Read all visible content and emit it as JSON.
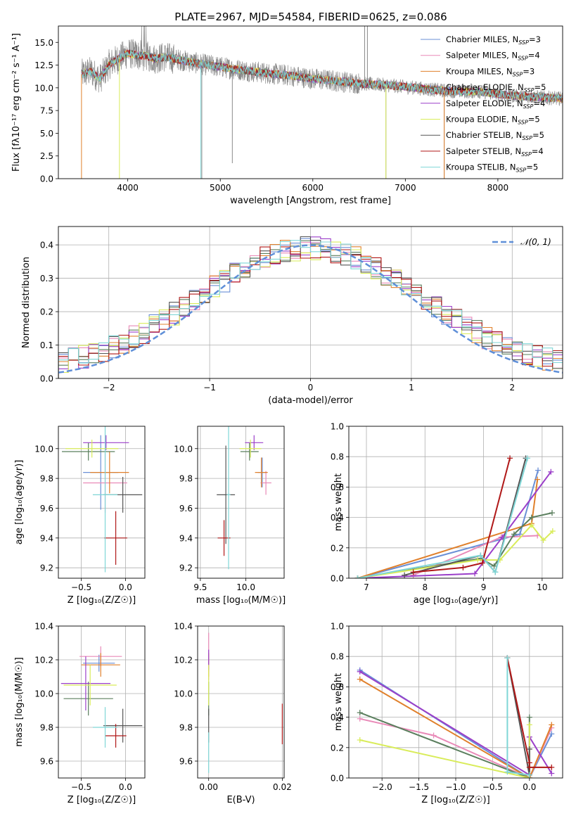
{
  "figure_title": "PLATE=2967, MJD=54584, FIBERID=0625, z=0.086",
  "colors": {
    "Chabrier MILES": "#6a8fd6",
    "Salpeter MILES": "#e98ab8",
    "Kroupa MILES": "#e0802c",
    "Chabrier ELODIE": "#5b7f5e",
    "Salpeter ELODIE": "#9b3fc9",
    "Kroupa ELODIE": "#d9ec5a",
    "Chabrier STELIB": "#555555",
    "Salpeter STELIB": "#b01818",
    "Kroupa STELIB": "#7fd6d6",
    "normal": "#5f8fd8"
  },
  "chart_data": [
    {
      "id": "spectrum",
      "type": "line",
      "title": "PLATE=2967, MJD=54584, FIBERID=0625, z=0.086",
      "xlabel": "wavelength [Angstrom, rest frame]",
      "ylabel": "Flux [fλ10⁻¹⁷ erg cm⁻² s⁻¹ A⁻¹]",
      "xlim": [
        3250,
        8700
      ],
      "ylim": [
        0,
        16.8
      ],
      "xticks": [
        4000,
        5000,
        6000,
        7000,
        8000
      ],
      "yticks": [
        0.0,
        2.5,
        5.0,
        7.5,
        10.0,
        12.5,
        15.0
      ],
      "legend_position": "top-right",
      "legend": [
        {
          "label": "Chabrier MILES, N",
          "sub": "SSP",
          "tail": "=3"
        },
        {
          "label": "Salpeter MILES, N",
          "sub": "SSP",
          "tail": "=4"
        },
        {
          "label": "Kroupa MILES, N",
          "sub": "SSP",
          "tail": "=3"
        },
        {
          "label": "Chabrier ELODIE, N",
          "sub": "SSP",
          "tail": "=5"
        },
        {
          "label": "Salpeter ELODIE, N",
          "sub": "SSP",
          "tail": "=4"
        },
        {
          "label": "Kroupa ELODIE, N",
          "sub": "SSP",
          "tail": "=5"
        },
        {
          "label": "Chabrier STELIB, N",
          "sub": "SSP",
          "tail": "=5"
        },
        {
          "label": "Salpeter STELIB, N",
          "sub": "SSP",
          "tail": "=4"
        },
        {
          "label": "Kroupa STELIB, N",
          "sub": "SSP",
          "tail": "=5"
        }
      ],
      "continuum": {
        "wavelength": [
          3500,
          3600,
          3700,
          3800,
          3900,
          4000,
          4100,
          4200,
          4300,
          4400,
          4600,
          4800,
          5000,
          5200,
          5500,
          5800,
          6000,
          6200,
          6400,
          6600,
          6800,
          7000,
          7200,
          7400,
          7600,
          7800,
          8000,
          8200,
          8400,
          8700
        ],
        "flux": [
          11.5,
          11.8,
          11.0,
          12.6,
          13.2,
          13.8,
          13.6,
          13.5,
          13.2,
          13.4,
          13.0,
          12.6,
          12.3,
          12.0,
          11.6,
          11.3,
          11.0,
          10.8,
          10.6,
          10.4,
          10.3,
          10.1,
          9.9,
          9.7,
          9.6,
          9.6,
          9.3,
          9.1,
          9.0,
          8.8
        ]
      }
    },
    {
      "id": "residuals",
      "type": "step-histogram",
      "xlabel": "(data-model)/error",
      "ylabel": "Normed distribution",
      "xlim": [
        -2.5,
        2.5
      ],
      "ylim": [
        0,
        0.455
      ],
      "xticks": [
        -2,
        -1,
        0,
        1,
        2
      ],
      "yticks": [
        0.0,
        0.1,
        0.2,
        0.3,
        0.4
      ],
      "legend_position": "top-right",
      "legend": [
        {
          "label": "𝒩(0, 1)"
        }
      ],
      "bin_width": 0.1,
      "bin_start": -2.5
    },
    {
      "id": "age-vs-Z",
      "type": "errorbar",
      "xlabel": "Z [log₁₀(Z/Z☉)]",
      "ylabel": "age  [log₁₀(age/yr)]",
      "xlim": [
        -0.76,
        0.22
      ],
      "ylim": [
        9.13,
        10.15
      ],
      "xticks": [
        -0.5,
        0.0
      ],
      "yticks": [
        9.2,
        9.4,
        9.6,
        9.8,
        10.0
      ],
      "points": [
        {
          "model": "Chabrier MILES",
          "x": -0.28,
          "y": 9.84,
          "xerr": 0.2,
          "yerr": 0.25
        },
        {
          "model": "Salpeter MILES",
          "x": -0.23,
          "y": 9.77,
          "xerr": 0.25,
          "yerr": 0.2
        },
        {
          "model": "Kroupa MILES",
          "x": -0.18,
          "y": 9.84,
          "xerr": 0.22,
          "yerr": 0.14
        },
        {
          "model": "Chabrier ELODIE",
          "x": -0.42,
          "y": 9.98,
          "xerr": 0.3,
          "yerr": 0.06
        },
        {
          "model": "Salpeter ELODIE",
          "x": -0.22,
          "y": 10.04,
          "xerr": 0.26,
          "yerr": 0.05
        },
        {
          "model": "Kroupa ELODIE",
          "x": -0.38,
          "y": 10.0,
          "xerr": 0.3,
          "yerr": 0.06
        },
        {
          "model": "Chabrier STELIB",
          "x": -0.03,
          "y": 9.69,
          "xerr": 0.22,
          "yerr": 0.12
        },
        {
          "model": "Salpeter STELIB",
          "x": -0.11,
          "y": 9.4,
          "xerr": 0.13,
          "yerr": 0.18
        },
        {
          "model": "Kroupa STELIB",
          "x": -0.23,
          "y": 9.69,
          "xerr": 0.14,
          "yerr": 0.52
        }
      ]
    },
    {
      "id": "age-vs-mass",
      "type": "errorbar",
      "xlabel": "mass [log₁₀(M/M☉)]",
      "ylabel": "",
      "xlim": [
        9.47,
        10.42
      ],
      "ylim": [
        9.13,
        10.15
      ],
      "xticks": [
        9.5,
        10.0
      ],
      "yticks": [
        9.2,
        9.4,
        9.6,
        9.8,
        10.0
      ],
      "points": [
        {
          "model": "Chabrier MILES",
          "x": 10.18,
          "y": 9.84,
          "xerr": 0.05,
          "yerr": 0.1
        },
        {
          "model": "Salpeter MILES",
          "x": 10.22,
          "y": 9.77,
          "xerr": 0.06,
          "yerr": 0.08
        },
        {
          "model": "Kroupa MILES",
          "x": 10.17,
          "y": 9.84,
          "xerr": 0.07,
          "yerr": 0.1
        },
        {
          "model": "Chabrier ELODIE",
          "x": 10.04,
          "y": 9.98,
          "xerr": 0.1,
          "yerr": 0.06
        },
        {
          "model": "Salpeter ELODIE",
          "x": 10.09,
          "y": 10.04,
          "xerr": 0.1,
          "yerr": 0.05
        },
        {
          "model": "Kroupa ELODIE",
          "x": 10.05,
          "y": 10.0,
          "xerr": 0.12,
          "yerr": 0.06
        },
        {
          "model": "Chabrier STELIB",
          "x": 9.78,
          "y": 9.69,
          "xerr": 0.1,
          "yerr": 0.33
        },
        {
          "model": "Salpeter STELIB",
          "x": 9.76,
          "y": 9.4,
          "xerr": 0.07,
          "yerr": 0.12
        },
        {
          "model": "Kroupa STELIB",
          "x": 9.81,
          "y": 9.69,
          "xerr": 0.02,
          "yerr": 0.5
        }
      ]
    },
    {
      "id": "weight-vs-age",
      "type": "line",
      "xlabel": "age  [log₁₀(age/yr)]",
      "ylabel": "mass weight",
      "xlim": [
        6.7,
        10.35
      ],
      "ylim": [
        0,
        1.0
      ],
      "xticks": [
        7,
        8,
        9,
        10
      ],
      "yticks": [
        0.0,
        0.2,
        0.4,
        0.6,
        0.8,
        1.0
      ],
      "series": [
        {
          "model": "Chabrier MILES",
          "x": [
            6.85,
            9.62,
            9.93
          ],
          "y": [
            0.0,
            0.29,
            0.71
          ]
        },
        {
          "model": "Salpeter MILES",
          "x": [
            7.8,
            9.3,
            9.92
          ],
          "y": [
            0.02,
            0.27,
            0.28
          ]
        },
        {
          "model": "Kroupa MILES",
          "x": [
            6.85,
            9.82,
            9.92
          ],
          "y": [
            0.0,
            0.36,
            0.65
          ]
        },
        {
          "model": "Chabrier ELODIE",
          "x": [
            6.85,
            8.95,
            9.18,
            9.52,
            9.82,
            10.17
          ],
          "y": [
            0.0,
            0.13,
            0.08,
            0.29,
            0.4,
            0.43
          ]
        },
        {
          "model": "Salpeter ELODIE",
          "x": [
            6.85,
            8.85,
            9.32,
            10.15
          ],
          "y": [
            0.0,
            0.03,
            0.27,
            0.7
          ]
        },
        {
          "model": "Kroupa ELODIE",
          "x": [
            6.85,
            8.9,
            9.28,
            9.82,
            10.02,
            10.18
          ],
          "y": [
            0.0,
            0.12,
            0.12,
            0.35,
            0.25,
            0.31
          ]
        },
        {
          "model": "Chabrier STELIB",
          "x": [
            7.65,
            8.95,
            9.2,
            9.72
          ],
          "y": [
            0.02,
            0.15,
            0.04,
            0.79
          ]
        },
        {
          "model": "Salpeter STELIB",
          "x": [
            7.8,
            8.65,
            8.98,
            9.45
          ],
          "y": [
            0.04,
            0.07,
            0.1,
            0.79
          ]
        },
        {
          "model": "Kroupa STELIB",
          "x": [
            6.85,
            8.95,
            9.2,
            9.75
          ],
          "y": [
            0.0,
            0.15,
            0.04,
            0.79
          ]
        }
      ]
    },
    {
      "id": "mass-vs-Z",
      "type": "errorbar",
      "xlabel": "Z [log₁₀(Z/Z☉)]",
      "ylabel": "mass [log₁₀(M/M☉)]",
      "xlim": [
        -0.76,
        0.22
      ],
      "ylim": [
        9.5,
        10.4
      ],
      "xticks": [
        -0.5,
        0.0
      ],
      "yticks": [
        9.6,
        9.8,
        10.0,
        10.2,
        10.4
      ],
      "points": [
        {
          "model": "Chabrier MILES",
          "x": -0.3,
          "y": 10.18,
          "xerr": 0.18,
          "yerr": 0.05
        },
        {
          "model": "Salpeter MILES",
          "x": -0.28,
          "y": 10.22,
          "xerr": 0.24,
          "yerr": 0.06
        },
        {
          "model": "Kroupa MILES",
          "x": -0.28,
          "y": 10.17,
          "xerr": 0.22,
          "yerr": 0.07
        },
        {
          "model": "Chabrier ELODIE",
          "x": -0.42,
          "y": 9.97,
          "xerr": 0.28,
          "yerr": 0.1
        },
        {
          "model": "Salpeter ELODIE",
          "x": -0.45,
          "y": 10.06,
          "xerr": 0.28,
          "yerr": 0.16
        },
        {
          "model": "Kroupa ELODIE",
          "x": -0.4,
          "y": 10.05,
          "xerr": 0.3,
          "yerr": 0.12
        },
        {
          "model": "Chabrier STELIB",
          "x": -0.03,
          "y": 9.81,
          "xerr": 0.22,
          "yerr": 0.1
        },
        {
          "model": "Salpeter STELIB",
          "x": -0.11,
          "y": 9.75,
          "xerr": 0.12,
          "yerr": 0.07
        },
        {
          "model": "Kroupa STELIB",
          "x": -0.23,
          "y": 9.8,
          "xerr": 0.14,
          "yerr": 0.12
        }
      ]
    },
    {
      "id": "mass-vs-EBV",
      "type": "errorbar",
      "xlabel": "E(B-V)",
      "ylabel": "",
      "xlim": [
        -0.003,
        0.0205
      ],
      "ylim": [
        9.5,
        10.4
      ],
      "xticks": [
        0.0,
        0.02
      ],
      "yticks": [
        9.6,
        9.8,
        10.0,
        10.2,
        10.4
      ],
      "points": [
        {
          "model": "Chabrier MILES",
          "x": 0.0,
          "y": 10.18,
          "xerr": 0,
          "yerr": 0.05
        },
        {
          "model": "Salpeter MILES",
          "x": 0.0,
          "y": 10.22,
          "xerr": 0,
          "yerr": 0.14
        },
        {
          "model": "Kroupa MILES",
          "x": 0.0,
          "y": 10.17,
          "xerr": 0,
          "yerr": 0.07
        },
        {
          "model": "Chabrier ELODIE",
          "x": 0.0,
          "y": 9.97,
          "xerr": 0,
          "yerr": 0.1
        },
        {
          "model": "Salpeter ELODIE",
          "x": 0.0,
          "y": 10.2,
          "xerr": 0,
          "yerr": 0.06
        },
        {
          "model": "Kroupa ELODIE",
          "x": 0.0,
          "y": 10.05,
          "xerr": 0,
          "yerr": 0.12
        },
        {
          "model": "Chabrier STELIB",
          "x": 0.0,
          "y": 9.81,
          "xerr": 0,
          "yerr": 0.1
        },
        {
          "model": "Salpeter STELIB",
          "x": 0.02,
          "y": 9.82,
          "xerr": 0,
          "yerr": 0.12
        },
        {
          "model": "Kroupa STELIB",
          "x": 0.0,
          "y": 9.65,
          "xerr": 0,
          "yerr": 0.12
        }
      ]
    },
    {
      "id": "weight-vs-Z",
      "type": "line",
      "xlabel": "Z [log₁₀(Z/Z☉)]",
      "ylabel": "mass weight",
      "xlim": [
        -2.45,
        0.45
      ],
      "ylim": [
        0,
        1.0
      ],
      "xticks": [
        -2.0,
        -1.5,
        -1.0,
        -0.5,
        0.0
      ],
      "yticks": [
        0.0,
        0.2,
        0.4,
        0.6,
        0.8,
        1.0
      ],
      "series": [
        {
          "model": "Chabrier MILES",
          "x": [
            -2.3,
            0.0,
            0.3
          ],
          "y": [
            0.71,
            0.0,
            0.29
          ]
        },
        {
          "model": "Salpeter MILES",
          "x": [
            -2.3,
            -1.3,
            0.0,
            0.3
          ],
          "y": [
            0.39,
            0.28,
            0.0,
            0.33
          ]
        },
        {
          "model": "Kroupa MILES",
          "x": [
            -2.3,
            0.0,
            0.3
          ],
          "y": [
            0.65,
            0.0,
            0.35
          ]
        },
        {
          "model": "Chabrier ELODIE",
          "x": [
            -2.3,
            0.0,
            0.0
          ],
          "y": [
            0.43,
            0.0,
            0.4
          ]
        },
        {
          "model": "Salpeter ELODIE",
          "x": [
            -2.3,
            0.0,
            0.0,
            0.3
          ],
          "y": [
            0.7,
            0.02,
            0.27,
            0.03
          ]
        },
        {
          "model": "Kroupa ELODIE",
          "x": [
            -2.3,
            0.0,
            0.0
          ],
          "y": [
            0.25,
            0.0,
            0.35
          ]
        },
        {
          "model": "Chabrier STELIB",
          "x": [
            -0.3,
            0.0,
            0.0
          ],
          "y": [
            0.79,
            0.02,
            0.19
          ]
        },
        {
          "model": "Salpeter STELIB",
          "x": [
            -0.3,
            0.0,
            0.0,
            0.3
          ],
          "y": [
            0.79,
            0.1,
            0.07,
            0.07
          ]
        },
        {
          "model": "Kroupa STELIB",
          "x": [
            -0.3,
            -0.3,
            0.0
          ],
          "y": [
            0.79,
            0.04,
            0.02
          ]
        }
      ]
    }
  ]
}
